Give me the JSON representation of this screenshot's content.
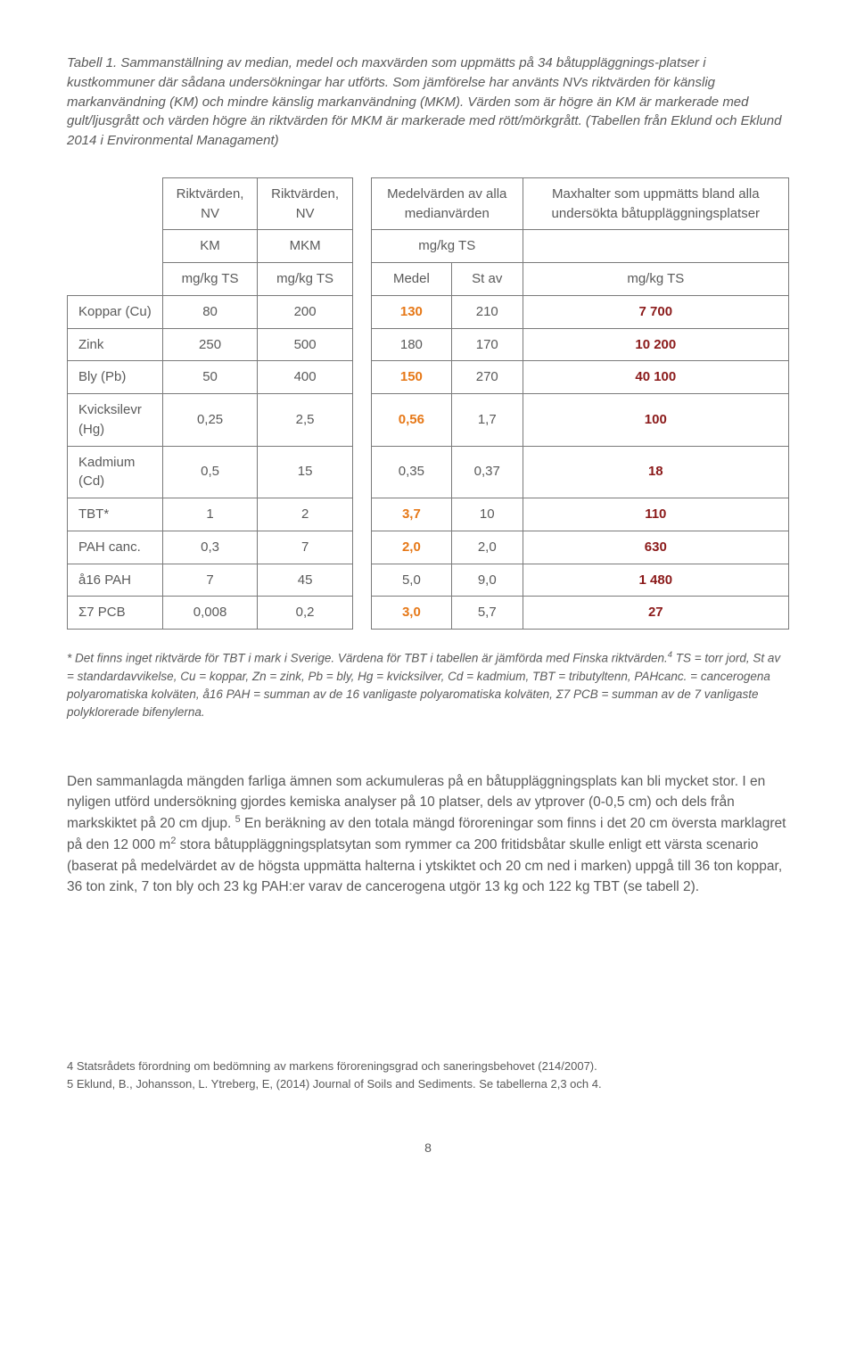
{
  "caption": "Tabell 1. Sammanställning av median, medel och maxvärden som uppmätts på 34 båtuppläggnings-platser i kustkommuner där sådana undersökningar har utförts. Som jämförelse har använts NVs riktvärden för känslig markanvändning (KM) och mindre känslig markanvändning (MKM). Värden som är högre än KM är markerade med gult/ljusgrått och värden högre än riktvärden för MKM är markerade med rött/mörkgrått. (Tabellen från Eklund och Eklund 2014 i Environmental Managament)",
  "table": {
    "head": {
      "h1": "Riktvärden, NV",
      "h2": "Riktvärden, NV",
      "h3": "Medelvärden av alla medianvärden",
      "h4": "Maxhalter som uppmätts bland alla undersökta båtuppläggningsplatser",
      "sub1": "KM",
      "sub2": "MKM",
      "sub3": "mg/kg TS",
      "u1": "mg/kg TS",
      "u2": "mg/kg TS",
      "u3": "Medel",
      "u4": "St av",
      "u5": "mg/kg TS"
    },
    "rows": [
      {
        "label": "Koppar (Cu)",
        "km": "80",
        "mkm": "200",
        "medel": "130",
        "medel_cls": "orange",
        "stav": "210",
        "max": "7 700",
        "max_cls": "darkred"
      },
      {
        "label": "Zink",
        "km": "250",
        "mkm": "500",
        "medel": "180",
        "medel_cls": "",
        "stav": "170",
        "max": "10 200",
        "max_cls": "darkred"
      },
      {
        "label": "Bly (Pb)",
        "km": "50",
        "mkm": "400",
        "medel": "150",
        "medel_cls": "orange",
        "stav": "270",
        "max": "40 100",
        "max_cls": "darkred"
      },
      {
        "label": "Kvicksilevr (Hg)",
        "km": "0,25",
        "mkm": "2,5",
        "medel": "0,56",
        "medel_cls": "orange",
        "stav": "1,7",
        "max": "100",
        "max_cls": "darkred"
      },
      {
        "label": "Kadmium (Cd)",
        "km": "0,5",
        "mkm": "15",
        "medel": "0,35",
        "medel_cls": "",
        "stav": "0,37",
        "max": "18",
        "max_cls": "darkred"
      },
      {
        "label": "TBT*",
        "km": "1",
        "mkm": "2",
        "medel": "3,7",
        "medel_cls": "orange-bold",
        "stav": "10",
        "max": "110",
        "max_cls": "darkred"
      },
      {
        "label": "PAH canc.",
        "km": "0,3",
        "mkm": "7",
        "medel": "2,0",
        "medel_cls": "orange",
        "stav": "2,0",
        "max": "630",
        "max_cls": "darkred"
      },
      {
        "label": "å16 PAH",
        "km": "7",
        "mkm": "45",
        "medel": "5,0",
        "medel_cls": "",
        "stav": "9,0",
        "max": "1 480",
        "max_cls": "darkred"
      },
      {
        "label": "Σ7 PCB",
        "km": "0,008",
        "mkm": "0,2",
        "medel": "3,0",
        "medel_cls": "orange-bold",
        "stav": "5,7",
        "max": "27",
        "max_cls": "darkred"
      }
    ]
  },
  "footnote_html": "* Det finns inget riktvärde för TBT i mark i Sverige. Värdena för TBT i tabellen är jämförda med Finska riktvärden.<sup>4</sup> TS = torr jord, St av = standardavvikelse, Cu = koppar, Zn = zink, Pb = bly, Hg = kvicksilver, Cd = kadmium, TBT = tributyltenn, PAHcanc. = cancerogena polyaromatiska kolväten, å16 PAH = summan av de 16 vanligaste polyaromatiska kolväten, Σ7 PCB = summan av de 7 vanligaste polyklorerade bifenylerna.",
  "body_html": "Den sammanlagda mängden farliga ämnen som ackumuleras på en båtuppläggningsplats kan bli mycket stor. I en nyligen utförd undersökning gjordes kemiska analyser på 10 platser, dels av ytprover (0-0,5 cm) och dels från markskiktet på 20 cm djup. <sup>5</sup> En beräkning av den totala mängd föroreningar som finns i det 20 cm översta marklagret på den 12 000 m<sup>2</sup> stora båtuppläggningsplatsytan som rymmer ca 200 fritidsbåtar skulle enligt ett värsta scenario (baserat på medelvärdet av de högsta uppmätta halterna i ytskiktet och 20 cm ned i marken) uppgå till 36 ton koppar, 36 ton zink, 7 ton bly och 23 kg PAH:er varav de cancerogena utgör 13 kg och 122 kg TBT (se tabell 2).",
  "refs": {
    "r1": "4 Statsrådets förordning om bedömning av markens föroreningsgrad och saneringsbehovet (214/2007).",
    "r2": "5 Eklund, B., Johansson, L. Ytreberg, E, (2014) Journal of Soils and Sediments. Se tabellerna 2,3 och 4."
  },
  "page": "8",
  "colors": {
    "text": "#5a5a5a",
    "border": "#7a7a7a",
    "orange": "#e67817",
    "darkred": "#8b1a1a",
    "background": "#ffffff"
  }
}
